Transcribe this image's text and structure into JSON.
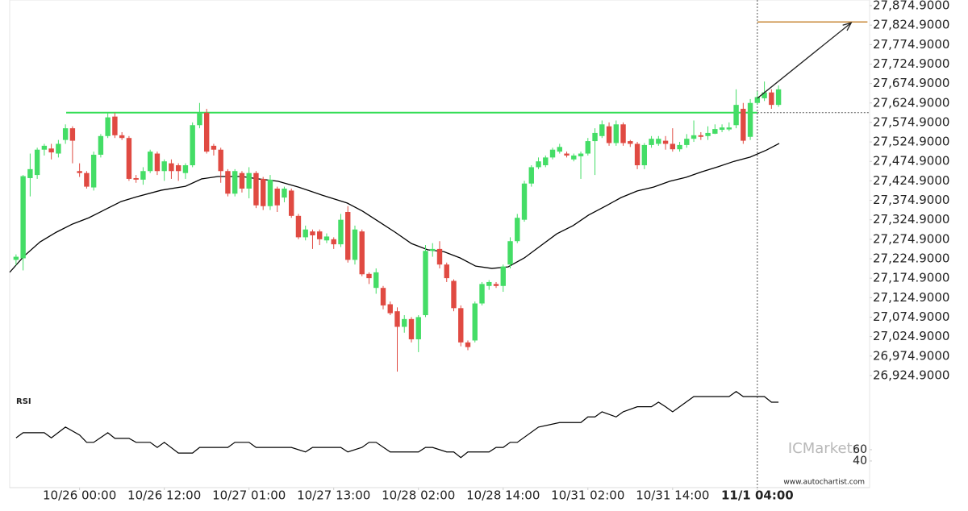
{
  "chart_data": [
    {
      "type": "candlestick",
      "categories": [
        null,
        null,
        null,
        null,
        null,
        null,
        null,
        null,
        null,
        "10/26 00:00",
        null,
        null,
        null,
        null,
        null,
        null,
        null,
        null,
        null,
        null,
        null,
        "10/26 12:00",
        null,
        null,
        null,
        null,
        null,
        null,
        null,
        null,
        null,
        null,
        null,
        "10/27 01:00",
        null,
        null,
        null,
        null,
        null,
        null,
        null,
        null,
        null,
        null,
        null,
        "10/27 13:00",
        null,
        null,
        null,
        null,
        null,
        null,
        null,
        null,
        null,
        null,
        null,
        "10/28 02:00",
        null,
        null,
        null,
        null,
        null,
        null,
        null,
        null,
        null,
        null,
        null,
        "10/28 14:00",
        null,
        null,
        null,
        null,
        null,
        null,
        null,
        null,
        null,
        null,
        null,
        "10/31 02:00",
        null,
        null,
        null,
        null,
        null,
        null,
        null,
        null,
        null,
        null,
        null,
        "10/31 14:00",
        null,
        null,
        null,
        null,
        null,
        null,
        null,
        null,
        null,
        null,
        null,
        "11/1 04:00",
        null,
        null,
        null
      ],
      "open": [
        27222,
        27226,
        27432,
        27440,
        27505,
        27508,
        27495,
        27530,
        27560,
        27450,
        27445,
        27408,
        27492,
        27540,
        27590,
        27542,
        27535,
        27432,
        27428,
        27450,
        27495,
        27450,
        27470,
        27465,
        27445,
        27465,
        27568,
        27600,
        27515,
        27505,
        27450,
        27392,
        27445,
        27405,
        27445,
        27430,
        27360,
        27405,
        27382,
        27400,
        27335,
        27280,
        27295,
        27295,
        27272,
        27275,
        27262,
        27345,
        27222,
        27295,
        27186,
        27150,
        27150,
        27108,
        27090,
        27050,
        27070,
        27018,
        27080,
        27245,
        27250,
        27210,
        27168,
        27098,
        27010,
        27015,
        27110,
        27155,
        27160,
        27155,
        27210,
        27270,
        27325,
        27418,
        27460,
        27465,
        27485,
        27500,
        27495,
        27480,
        27488,
        27495,
        27527,
        27540,
        27565,
        27522,
        27570,
        27527,
        27520,
        27465,
        27517,
        27520,
        27528,
        27520,
        27506,
        27517,
        27533,
        27542,
        27540,
        27546,
        27556,
        27557,
        27568,
        27610,
        27538,
        27625,
        27637,
        27652,
        27620
      ],
      "high": [
        27236,
        27440,
        27495,
        27510,
        27520,
        27520,
        27530,
        27570,
        27565,
        27470,
        27450,
        27500,
        27545,
        27600,
        27600,
        27550,
        27540,
        27440,
        27460,
        27505,
        27500,
        27480,
        27480,
        27470,
        27470,
        27575,
        27625,
        27610,
        27520,
        27510,
        27455,
        27455,
        27450,
        27460,
        27450,
        27435,
        27440,
        27410,
        27410,
        27405,
        27340,
        27310,
        27300,
        27300,
        27290,
        27280,
        27340,
        27360,
        27310,
        27300,
        27190,
        27200,
        27155,
        27115,
        27100,
        27080,
        27075,
        27080,
        27260,
        27265,
        27270,
        27215,
        27172,
        27105,
        27015,
        27115,
        27165,
        27170,
        27165,
        27210,
        27280,
        27340,
        27425,
        27465,
        27485,
        27490,
        27510,
        27520,
        27500,
        27495,
        27500,
        27535,
        27560,
        27580,
        27575,
        27580,
        27575,
        27530,
        27525,
        27522,
        27540,
        27540,
        27540,
        27560,
        27525,
        27545,
        27580,
        27550,
        27565,
        27570,
        27570,
        27575,
        27660,
        27625,
        27635,
        27655,
        27680,
        27660,
        27670
      ],
      "low": [
        27208,
        27195,
        27385,
        27430,
        27490,
        27480,
        27485,
        27520,
        27470,
        27435,
        27405,
        27400,
        27485,
        27535,
        27535,
        27530,
        27425,
        27420,
        27415,
        27445,
        27440,
        27425,
        27430,
        27425,
        27430,
        27460,
        27560,
        27495,
        27490,
        27420,
        27385,
        27385,
        27395,
        27380,
        27355,
        27350,
        27350,
        27345,
        27370,
        27330,
        27275,
        27272,
        27250,
        27260,
        27265,
        27250,
        27255,
        27215,
        27210,
        27180,
        27160,
        27135,
        27095,
        27080,
        26935,
        27035,
        27010,
        26985,
        27075,
        27230,
        27200,
        27165,
        27090,
        27000,
        26990,
        27010,
        27105,
        27145,
        27150,
        27140,
        27200,
        27265,
        27320,
        27410,
        27455,
        27460,
        27480,
        27495,
        27485,
        27475,
        27430,
        27490,
        27440,
        27535,
        27515,
        27515,
        27515,
        27512,
        27455,
        27455,
        27510,
        27515,
        27505,
        27500,
        27500,
        27510,
        27525,
        27530,
        27530,
        27545,
        27550,
        27553,
        27560,
        27520,
        27530,
        27620,
        27630,
        27610,
        27615
      ],
      "close": [
        27230,
        27437,
        27455,
        27505,
        27515,
        27498,
        27520,
        27560,
        27528,
        27445,
        27410,
        27492,
        27540,
        27588,
        27542,
        27535,
        27430,
        27428,
        27450,
        27500,
        27450,
        27475,
        27450,
        27450,
        27465,
        27568,
        27600,
        27500,
        27505,
        27450,
        27392,
        27450,
        27405,
        27445,
        27362,
        27360,
        27428,
        27362,
        27405,
        27335,
        27280,
        27300,
        27285,
        27275,
        27282,
        27262,
        27325,
        27222,
        27300,
        27185,
        27175,
        27190,
        27105,
        27085,
        27050,
        27070,
        27018,
        27075,
        27245,
        27250,
        27210,
        27175,
        27098,
        27010,
        26998,
        27110,
        27160,
        27165,
        27155,
        27205,
        27270,
        27330,
        27418,
        27460,
        27475,
        27485,
        27505,
        27512,
        27490,
        27490,
        27495,
        27527,
        27548,
        27570,
        27522,
        27570,
        27522,
        27520,
        27465,
        27517,
        27533,
        27533,
        27520,
        27506,
        27517,
        27533,
        27542,
        27538,
        27548,
        27558,
        27562,
        27562,
        27620,
        27528,
        27625,
        27640,
        27652,
        27620,
        27660
      ],
      "up_color": "#44dd66",
      "down_color": "#e04a42",
      "xlim": [
        -0.9,
        120.9
      ],
      "ylim": [
        26895.8,
        27889.4
      ],
      "yticks": [
        {
          "value": 27874.9,
          "label": "27,874.9000"
        },
        {
          "value": 27824.9,
          "label": "27,824.9000"
        },
        {
          "value": 27774.9,
          "label": "27,774.9000"
        },
        {
          "value": 27724.9,
          "label": "27,724.9000"
        },
        {
          "value": 27674.9,
          "label": "27,674.9000"
        },
        {
          "value": 27624.9,
          "label": "27,624.9000"
        },
        {
          "value": 27574.9,
          "label": "27,574.9000"
        },
        {
          "value": 27524.9,
          "label": "27,524.9000"
        },
        {
          "value": 27474.9,
          "label": "27,474.9000"
        },
        {
          "value": 27424.9,
          "label": "27,424.9000"
        },
        {
          "value": 27374.9,
          "label": "27,374.9000"
        },
        {
          "value": 27324.9,
          "label": "27,324.9000"
        },
        {
          "value": 27274.9,
          "label": "27,274.9000"
        },
        {
          "value": 27224.9,
          "label": "27,224.9000"
        },
        {
          "value": 27174.9,
          "label": "27,174.9000"
        },
        {
          "value": 27124.9,
          "label": "27,124.9000"
        },
        {
          "value": 27074.9,
          "label": "27,074.9000"
        },
        {
          "value": 27024.9,
          "label": "27,024.9000"
        },
        {
          "value": 26974.9,
          "label": "26,974.9000"
        },
        {
          "value": 26924.9,
          "label": "26,924.9000"
        }
      ],
      "moving_average": {
        "color": "#000000",
        "x": [
          -0.9,
          1.1,
          3.4,
          5.7,
          8,
          10.3,
          12.6,
          14.9,
          17.1,
          20.6,
          24,
          26.3,
          28.6,
          32,
          34.3,
          37.1,
          40,
          43.4,
          46.9,
          49.1,
          51.4,
          53.7,
          56,
          58.3,
          60.6,
          62.9,
          65.1,
          67.4,
          69.7,
          72,
          74.3,
          76.6,
          78.9,
          81.1,
          83.4,
          85.7,
          88,
          90.3,
          92.6,
          94.9,
          97.1,
          99.4,
          101.7,
          104,
          106.3,
          108.1
        ],
        "values": [
          27190,
          27231,
          27268,
          27293,
          27314,
          27330,
          27351,
          27372,
          27384,
          27401,
          27411,
          27430,
          27436,
          27436,
          27430,
          27424,
          27409,
          27388,
          27368,
          27347,
          27320,
          27293,
          27264,
          27248,
          27243,
          27227,
          27206,
          27200,
          27204,
          27227,
          27258,
          27289,
          27310,
          27337,
          27359,
          27382,
          27399,
          27409,
          27424,
          27434,
          27448,
          27461,
          27475,
          27486,
          27504,
          27521
        ]
      },
      "resistance": {
        "value": 27600,
        "from": 7.1,
        "to": 105,
        "color": "#33dd55"
      },
      "target": {
        "value": 27833,
        "from": 105,
        "to": 120.6,
        "color": "#c8893a"
      },
      "projection": {
        "x": [
          105,
          118.3
        ],
        "values": [
          27637,
          27831
        ],
        "color": "#222222"
      },
      "now_index": 105,
      "watermark": "ICMarkets",
      "source": "www.autochartist.com"
    },
    {
      "type": "line",
      "title": "RSI",
      "color": "#000000",
      "x": [
        0,
        1,
        4,
        5,
        7,
        9,
        10,
        11,
        13,
        14,
        16,
        17,
        19,
        20,
        21,
        23,
        25,
        26,
        30,
        31,
        33,
        34,
        39,
        41,
        42,
        46,
        47,
        49,
        50,
        51,
        53,
        57,
        58,
        59,
        61,
        62,
        63,
        64,
        67,
        68,
        69,
        70,
        71,
        74,
        77,
        80,
        81,
        82,
        83,
        85,
        86,
        88,
        90,
        91,
        92,
        93,
        96,
        101,
        102,
        103,
        106,
        107,
        108
      ],
      "values": [
        81,
        90,
        90,
        81,
        100,
        86,
        73,
        73,
        90,
        80,
        80,
        73,
        73,
        64,
        73,
        54,
        54,
        64,
        64,
        73,
        73,
        64,
        64,
        56,
        64,
        64,
        56,
        64,
        73,
        73,
        56,
        56,
        64,
        64,
        56,
        56,
        46,
        56,
        56,
        64,
        64,
        73,
        73,
        100,
        108,
        108,
        118,
        118,
        127,
        118,
        127,
        136,
        136,
        144,
        136,
        127,
        154,
        154,
        163,
        154,
        154,
        144,
        144
      ],
      "ylim": [
        0,
        164
      ],
      "yticks": [
        60,
        40
      ]
    }
  ]
}
